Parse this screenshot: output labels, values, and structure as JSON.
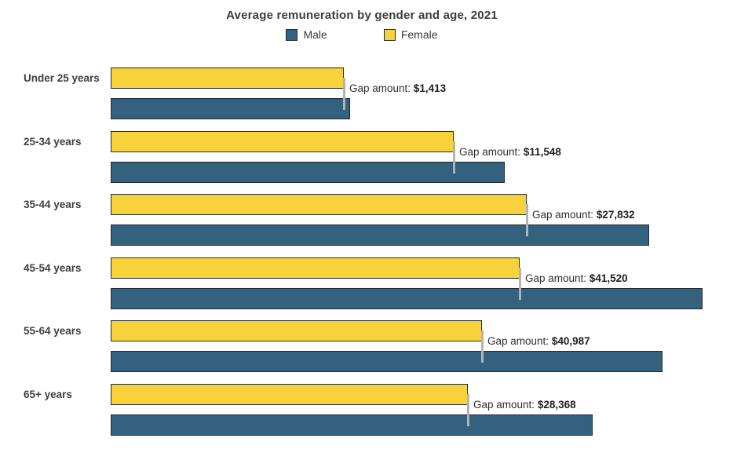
{
  "title": "Average remuneration by gender and age, 2021",
  "gap_prefix": "Gap amount: ",
  "colors": {
    "male": "#33617E",
    "female": "#F7D23A",
    "bar_border": "#1E2B38",
    "connector": "#B3B3B3",
    "title_text": "#3B3B3B",
    "label_text": "#3F3F3F",
    "gap_text": "#1F1F1F"
  },
  "legend": {
    "male_label": "Male",
    "female_label": "Female"
  },
  "chart_data": {
    "type": "bar",
    "orientation": "horizontal",
    "title": "Average remuneration by gender and age, 2021",
    "categories": [
      "Under 25 years",
      "25-34 years",
      "35-44 years",
      "45-54 years",
      "55-64 years",
      "65+ years"
    ],
    "series": [
      {
        "name": "Male",
        "color": "#33617E",
        "values": [
          54313,
          89348,
          122132,
          134220,
          125187,
          109368
        ]
      },
      {
        "name": "Female",
        "color": "#F7D23A",
        "values": [
          52900,
          77800,
          94300,
          92700,
          84200,
          81000
        ]
      }
    ],
    "gap_values": [
      1413,
      11548,
      27832,
      41520,
      40987,
      28368
    ],
    "gap_labels": [
      "$1,413",
      "$11,548",
      "$27,832",
      "$41,520",
      "$40,987",
      "$28,368"
    ],
    "legend_position": "top",
    "value_axis_hidden": true,
    "grid": false
  }
}
